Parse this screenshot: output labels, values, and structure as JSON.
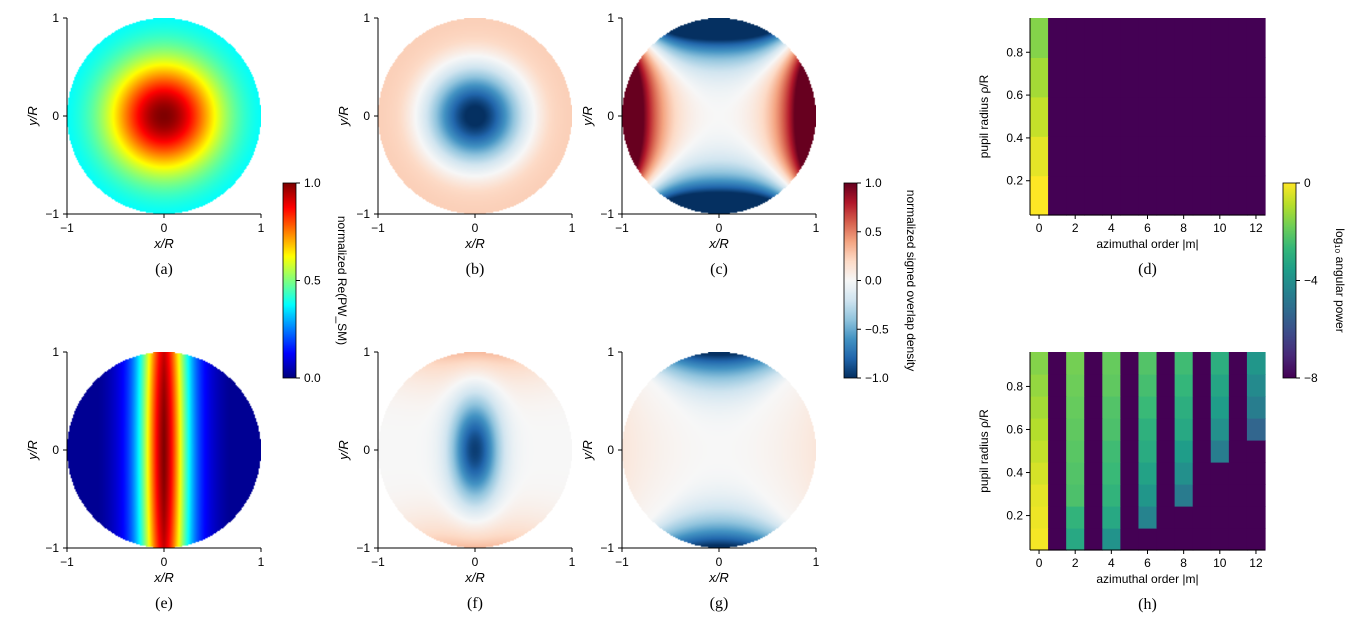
{
  "colors": {
    "jet": [
      "#00007f",
      "#0000ff",
      "#007fff",
      "#00ffff",
      "#7fff7f",
      "#ffff00",
      "#ff7f00",
      "#ff0000",
      "#7f0000"
    ],
    "rdbu": [
      "#053061",
      "#2166ac",
      "#4393c3",
      "#92c5de",
      "#d1e5f0",
      "#f7f7f7",
      "#fddbc7",
      "#f4a582",
      "#d6604d",
      "#b2182b",
      "#67001f"
    ],
    "viridis": [
      "#440154",
      "#482878",
      "#3e4a89",
      "#31688e",
      "#26828e",
      "#1f9e89",
      "#35b779",
      "#6ece58",
      "#b5de2b",
      "#fde725"
    ]
  },
  "panels": {
    "a": {
      "label": "(a)",
      "xlabel": "x/R",
      "ylabel": "y/R",
      "xticks": [
        "−1",
        "0",
        "1"
      ],
      "yticks": [
        "−1",
        "0",
        "1"
      ]
    },
    "b": {
      "label": "(b)",
      "xlabel": "x/R",
      "ylabel": "y/R",
      "xticks": [
        "−1",
        "0",
        "1"
      ],
      "yticks": [
        "−1",
        "0",
        "1"
      ]
    },
    "c": {
      "label": "(c)",
      "xlabel": "x/R",
      "ylabel": "y/R",
      "xticks": [
        "−1",
        "0",
        "1"
      ],
      "yticks": [
        "−1",
        "0",
        "1"
      ]
    },
    "e": {
      "label": "(e)",
      "xlabel": "x/R",
      "ylabel": "y/R",
      "xticks": [
        "−1",
        "0",
        "1"
      ],
      "yticks": [
        "−1",
        "0",
        "1"
      ]
    },
    "f": {
      "label": "(f)",
      "xlabel": "x/R",
      "ylabel": "y/R",
      "xticks": [
        "−1",
        "0",
        "1"
      ],
      "yticks": [
        "−1",
        "0",
        "1"
      ]
    },
    "g": {
      "label": "(g)",
      "xlabel": "x/R",
      "ylabel": "y/R",
      "xticks": [
        "−1",
        "0",
        "1"
      ],
      "yticks": [
        "−1",
        "0",
        "1"
      ]
    },
    "d": {
      "label": "(d)",
      "xlabel": "azimuthal order |m|",
      "ylabel": "pupil radius ρ/R",
      "xticks": [
        "0",
        "2",
        "4",
        "6",
        "8",
        "10",
        "12"
      ],
      "yticks": [
        "0.2",
        "0.4",
        "0.6",
        "0.8"
      ]
    },
    "h": {
      "label": "(h)",
      "xlabel": "azimuthal order |m|",
      "ylabel": "pupil radius ρ/R",
      "xticks": [
        "0",
        "2",
        "4",
        "6",
        "8",
        "10",
        "12"
      ],
      "yticks": [
        "0.2",
        "0.4",
        "0.6",
        "0.8"
      ]
    }
  },
  "colorbars": {
    "jet": {
      "label": "normalized Re(PW_SM)",
      "ticks": [
        "1.0",
        "0.5",
        "0.0"
      ]
    },
    "rdbu": {
      "label": "normalized signed overlap density",
      "ticks": [
        "1.0",
        "0.5",
        "0.0",
        "−0.5",
        "−1.0"
      ]
    },
    "viridis": {
      "label": "log₁₀ angular power",
      "ticks": [
        "0",
        "−4",
        "−8"
      ]
    }
  },
  "chart_data": [
    {
      "panel": "a",
      "type": "heatmap",
      "domain": "unit disk",
      "xlim": [
        -1,
        1
      ],
      "ylim": [
        -1,
        1
      ],
      "colormap": "jet",
      "clim": [
        0,
        1
      ],
      "description_values": {
        "center": 1.0,
        "rim": 0.35
      }
    },
    {
      "panel": "b",
      "type": "heatmap",
      "domain": "unit disk",
      "xlim": [
        -1,
        1
      ],
      "ylim": [
        -1,
        1
      ],
      "colormap": "RdBu_r",
      "clim": [
        -1,
        1
      ],
      "description_values": {
        "center": -1.0,
        "rim": 0.25
      }
    },
    {
      "panel": "c",
      "type": "heatmap",
      "domain": "unit disk",
      "xlim": [
        -1,
        1
      ],
      "ylim": [
        -1,
        1
      ],
      "colormap": "RdBu_r",
      "clim": [
        -1,
        1
      ],
      "description_values": {
        "peak_left_right": 1.0,
        "peak_top_bottom": -1.0
      }
    },
    {
      "panel": "d",
      "type": "heatmap",
      "xlim": [
        -0.5,
        12.5
      ],
      "ylim": [
        0.04,
        0.96
      ],
      "colormap": "viridis",
      "clim": [
        -8,
        0
      ],
      "m": [
        0,
        1,
        2,
        3,
        4,
        5,
        6,
        7,
        8,
        9,
        10,
        11,
        12
      ],
      "rows_rho": [
        0.2,
        0.4,
        0.6,
        0.8,
        0.95
      ],
      "log10_power": [
        [
          0,
          -8,
          -8,
          -8,
          -8,
          -8,
          -8,
          -8,
          -8,
          -8,
          -8,
          -8,
          -8
        ],
        [
          -0.3,
          -8,
          -8,
          -8,
          -8,
          -8,
          -8,
          -8,
          -8,
          -8,
          -8,
          -8,
          -8
        ],
        [
          -0.7,
          -8,
          -8,
          -8,
          -8,
          -8,
          -8,
          -8,
          -8,
          -8,
          -8,
          -8,
          -8
        ],
        [
          -1.1,
          -8,
          -8,
          -8,
          -8,
          -8,
          -8,
          -8,
          -8,
          -8,
          -8,
          -8,
          -8
        ],
        [
          -1.5,
          -8,
          -8,
          -8,
          -8,
          -8,
          -8,
          -8,
          -8,
          -8,
          -8,
          -8,
          -8
        ]
      ]
    },
    {
      "panel": "e",
      "type": "heatmap",
      "domain": "unit disk",
      "xlim": [
        -1,
        1
      ],
      "ylim": [
        -1,
        1
      ],
      "colormap": "jet",
      "clim": [
        0,
        1
      ],
      "description_values": {
        "center": 1.0,
        "edges_left_right": 0.05
      }
    },
    {
      "panel": "f",
      "type": "heatmap",
      "domain": "unit disk",
      "xlim": [
        -1,
        1
      ],
      "ylim": [
        -1,
        1
      ],
      "colormap": "RdBu_r",
      "clim": [
        -1,
        1
      ],
      "description_values": {
        "center": -0.9,
        "top_bottom": 0.35
      }
    },
    {
      "panel": "g",
      "type": "heatmap",
      "domain": "unit disk",
      "xlim": [
        -1,
        1
      ],
      "ylim": [
        -1,
        1
      ],
      "colormap": "RdBu_r",
      "clim": [
        -1,
        1
      ],
      "description_values": {
        "top_bottom": -1.0,
        "left_right": 0.1
      }
    },
    {
      "panel": "h",
      "type": "heatmap",
      "xlim": [
        -0.5,
        12.5
      ],
      "ylim": [
        0.04,
        0.96
      ],
      "colormap": "viridis",
      "clim": [
        -8,
        0
      ],
      "m": [
        0,
        1,
        2,
        3,
        4,
        5,
        6,
        7,
        8,
        9,
        10,
        11,
        12
      ],
      "rows_rho": [
        0.1,
        0.2,
        0.3,
        0.4,
        0.5,
        0.6,
        0.7,
        0.8,
        0.9
      ],
      "log10_power": [
        [
          -0.1,
          -8,
          -3.2,
          -8,
          -3.9,
          -8,
          -8,
          -8,
          -8,
          -8,
          -8,
          -8,
          -8
        ],
        [
          -0.2,
          -8,
          -2.8,
          -8,
          -3.2,
          -8,
          -4.4,
          -8,
          -8,
          -8,
          -8,
          -8,
          -8
        ],
        [
          -0.3,
          -8,
          -2.3,
          -8,
          -2.8,
          -8,
          -3.8,
          -8,
          -4.7,
          -8,
          -8,
          -8,
          -8
        ],
        [
          -0.5,
          -8,
          -2.2,
          -8,
          -2.6,
          -8,
          -3.4,
          -8,
          -4.0,
          -8,
          -8,
          -8,
          -8
        ],
        [
          -0.7,
          -8,
          -2.1,
          -8,
          -2.5,
          -8,
          -3.1,
          -8,
          -3.6,
          -8,
          -4.6,
          -8,
          -8
        ],
        [
          -0.9,
          -8,
          -2.0,
          -8,
          -2.3,
          -8,
          -2.9,
          -8,
          -3.2,
          -8,
          -4.0,
          -8,
          -5.4
        ],
        [
          -1.1,
          -8,
          -1.9,
          -8,
          -2.2,
          -8,
          -2.6,
          -8,
          -3.0,
          -8,
          -3.6,
          -8,
          -4.6
        ],
        [
          -1.3,
          -8,
          -1.8,
          -8,
          -2.0,
          -8,
          -2.4,
          -8,
          -2.7,
          -8,
          -3.3,
          -8,
          -4.2
        ],
        [
          -1.5,
          -8,
          -1.7,
          -8,
          -1.9,
          -8,
          -2.2,
          -8,
          -2.5,
          -8,
          -3.0,
          -8,
          -3.8
        ]
      ]
    }
  ]
}
